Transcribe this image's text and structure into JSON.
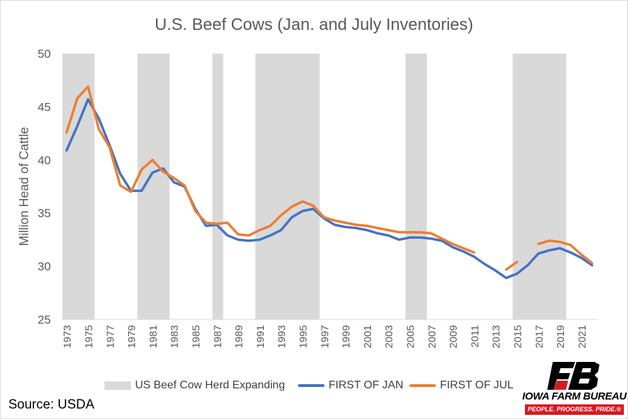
{
  "chart_data": {
    "type": "line",
    "title": "U.S. Beef Cows (Jan. and July Inventories)",
    "ylabel": "Million Head of Cattle",
    "xlabel": "",
    "ylim": [
      25,
      50
    ],
    "yticks": [
      25,
      30,
      35,
      40,
      45,
      50
    ],
    "xlim": [
      1972.5,
      2022.5
    ],
    "xticks": [
      "1973",
      "1975",
      "1977",
      "1979",
      "1981",
      "1983",
      "1985",
      "1987",
      "1989",
      "1991",
      "1993",
      "1995",
      "1997",
      "1999",
      "2001",
      "2003",
      "2005",
      "2007",
      "2009",
      "2011",
      "2013",
      "2015",
      "2017",
      "2019",
      "2021"
    ],
    "grid": false,
    "legend_position": "bottom",
    "shaded_periods": {
      "name": "US Beef Cow Herd Expanding",
      "color": "#d9d9d9",
      "ranges": [
        [
          1972.6,
          1975.6
        ],
        [
          1979.6,
          1982.6
        ],
        [
          1986.6,
          1987.6
        ],
        [
          1990.6,
          1996.6
        ],
        [
          2004.6,
          2006.6
        ],
        [
          2014.6,
          2019.6
        ]
      ]
    },
    "series": [
      {
        "name": "FIRST OF JAN",
        "color": "#4472c4",
        "x": [
          1973,
          1974,
          1975,
          1976,
          1977,
          1978,
          1979,
          1980,
          1981,
          1982,
          1983,
          1984,
          1985,
          1986,
          1987,
          1988,
          1989,
          1990,
          1991,
          1992,
          1993,
          1994,
          1995,
          1996,
          1997,
          1998,
          1999,
          2000,
          2001,
          2002,
          2003,
          2004,
          2005,
          2006,
          2007,
          2008,
          2009,
          2010,
          2011,
          2012,
          2013,
          2014,
          2015,
          2016,
          2017,
          2018,
          2019,
          2020,
          2021,
          2022
        ],
        "values": [
          40.9,
          43.2,
          45.7,
          43.9,
          41.4,
          38.7,
          37.1,
          37.1,
          38.8,
          39.2,
          37.9,
          37.5,
          35.4,
          33.8,
          33.9,
          32.9,
          32.5,
          32.4,
          32.5,
          32.9,
          33.4,
          34.6,
          35.2,
          35.4,
          34.5,
          33.9,
          33.7,
          33.6,
          33.4,
          33.1,
          32.9,
          32.5,
          32.7,
          32.7,
          32.6,
          32.4,
          31.8,
          31.4,
          30.9,
          30.2,
          29.6,
          28.9,
          29.3,
          30.1,
          31.2,
          31.5,
          31.7,
          31.3,
          30.8,
          30.1
        ]
      },
      {
        "name": "FIRST OF JUL",
        "color": "#ed7d31",
        "x": [
          1973,
          1974,
          1975,
          1976,
          1977,
          1978,
          1979,
          1980,
          1981,
          1982,
          1983,
          1984,
          1985,
          1986,
          1987,
          1988,
          1989,
          1990,
          1991,
          1992,
          1993,
          1994,
          1995,
          1996,
          1997,
          1998,
          1999,
          2000,
          2001,
          2002,
          2003,
          2004,
          2005,
          2006,
          2007,
          2008,
          2009,
          2010,
          2011,
          2012,
          2013,
          2014,
          2015,
          2016,
          2017,
          2018,
          2019,
          2020,
          2021,
          2022
        ],
        "values": [
          42.6,
          45.8,
          46.9,
          42.9,
          41.2,
          37.6,
          37.0,
          39.1,
          40.0,
          38.9,
          38.3,
          37.6,
          35.2,
          34.1,
          34.0,
          34.1,
          33.0,
          32.9,
          33.4,
          33.8,
          34.8,
          35.6,
          36.1,
          35.7,
          34.6,
          34.3,
          34.1,
          33.9,
          33.8,
          33.6,
          33.4,
          33.2,
          33.2,
          33.2,
          33.1,
          32.6,
          32.1,
          31.7,
          31.3,
          null,
          null,
          29.7,
          30.4,
          null,
          32.1,
          32.4,
          32.3,
          32.0,
          31.1,
          30.3
        ]
      }
    ]
  },
  "source_text": "Source: USDA",
  "logo": {
    "name": "IOWA FARM BUREAU",
    "tagline": "PEOPLE. PROGRESS. PRIDE.®",
    "colors": {
      "mark": "#000000",
      "accent": "#d7191f"
    }
  }
}
